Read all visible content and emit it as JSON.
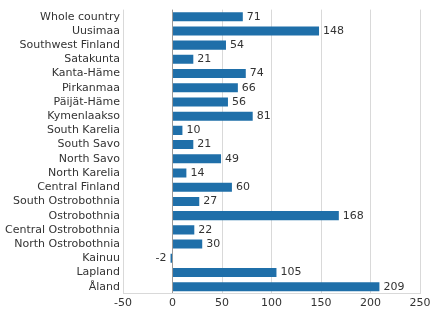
{
  "chart_data": {
    "type": "bar",
    "orientation": "horizontal",
    "categories": [
      "Whole country",
      "Uusimaa",
      "Southwest Finland",
      "Satakunta",
      "Kanta-Häme",
      "Pirkanmaa",
      "Päijät-Häme",
      "Kymenlaakso",
      "South Karelia",
      "South Savo",
      "North Savo",
      "North Karelia",
      "Central Finland",
      "South Ostrobothnia",
      "Ostrobothnia",
      "Central Ostrobothnia",
      "North Ostrobothnia",
      "Kainuu",
      "Lapland",
      "Åland"
    ],
    "values": [
      71,
      148,
      54,
      21,
      74,
      66,
      56,
      81,
      10,
      21,
      49,
      14,
      60,
      27,
      168,
      22,
      30,
      -2,
      105,
      209
    ],
    "color": "#1f6fa9",
    "xlim": [
      -50,
      250
    ],
    "xticks": [
      -50,
      0,
      50,
      100,
      150,
      200,
      250
    ],
    "grid": true,
    "data_labels": true
  }
}
